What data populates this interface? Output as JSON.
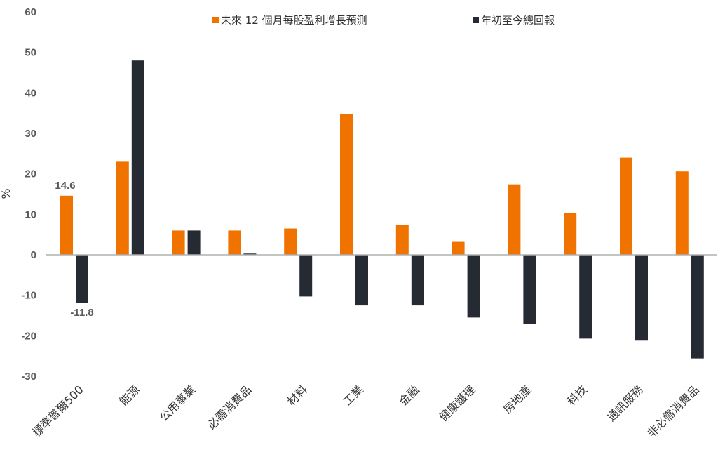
{
  "chart_data": {
    "type": "bar",
    "ylabel": "%",
    "ylim": [
      -30,
      60
    ],
    "yticks": [
      60,
      50,
      40,
      30,
      20,
      10,
      0,
      -10,
      -20,
      -30
    ],
    "legend_position": "top",
    "categories": [
      "標準普爾500",
      "能源",
      "公用事業",
      "必需消費品",
      "材料",
      "工業",
      "金融",
      "健康護理",
      "房地產",
      "科技",
      "通訊服務",
      "非必需消費品"
    ],
    "series": [
      {
        "name": "未來 12 個月每股盈利增長預測",
        "color": "#f07300",
        "values": [
          14.6,
          23.0,
          6.0,
          6.0,
          6.5,
          34.8,
          7.4,
          3.2,
          17.4,
          10.3,
          24.0,
          20.6
        ]
      },
      {
        "name": "年初至今總回報",
        "color": "#262a33",
        "values": [
          -11.8,
          48.0,
          6.0,
          0.3,
          -10.3,
          -12.5,
          -12.5,
          -15.5,
          -17.0,
          -20.7,
          -21.2,
          -25.6
        ]
      }
    ],
    "data_labels": [
      {
        "series": 0,
        "category": 0,
        "text": "14.6"
      },
      {
        "series": 1,
        "category": 0,
        "text": "-11.8"
      }
    ]
  }
}
